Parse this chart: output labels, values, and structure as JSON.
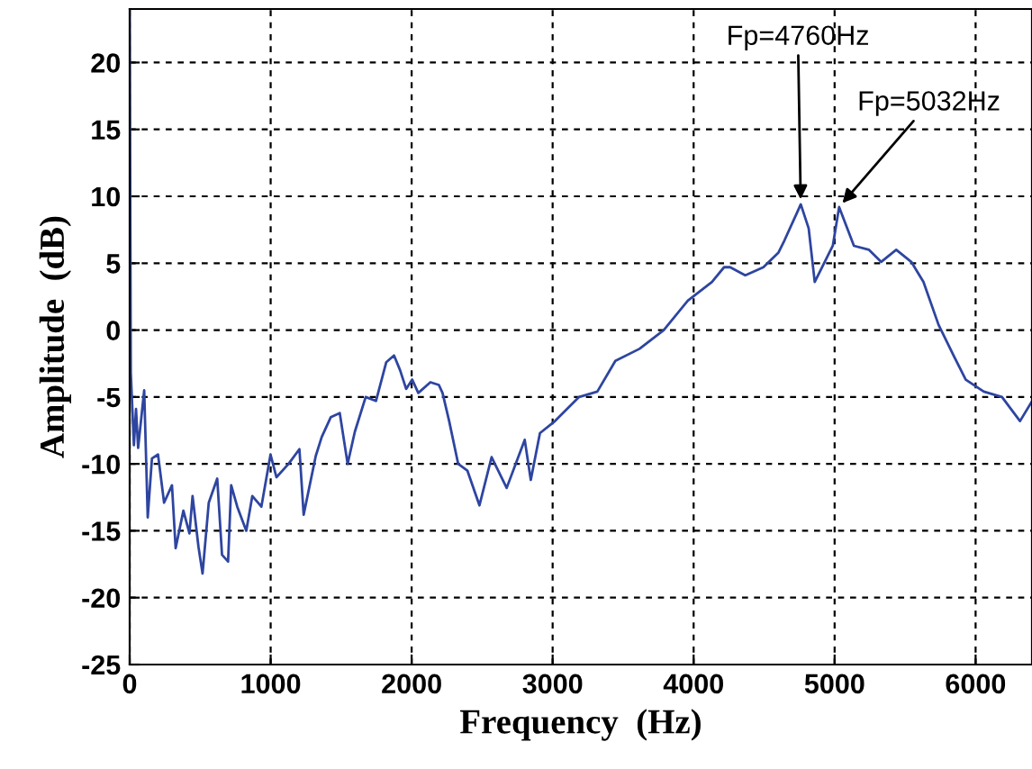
{
  "chart_data": {
    "type": "line",
    "xlabel": "Frequency  (Hz)",
    "ylabel": "Amplitude  (dB)",
    "xlim": [
      0,
      6400
    ],
    "ylim": [
      -25,
      24
    ],
    "xticks": [
      0,
      1000,
      2000,
      3000,
      4000,
      5000,
      6000
    ],
    "yticks": [
      -25,
      -20,
      -15,
      -10,
      -5,
      0,
      5,
      10,
      15,
      20
    ],
    "grid": true,
    "line_style": "solid",
    "marker": "none",
    "annotations": [
      {
        "text": "Fp=4760Hz",
        "x": 4760,
        "y": 9.4
      },
      {
        "text": "Fp=5032Hz",
        "x": 5032,
        "y": 9.2
      }
    ],
    "series": [
      {
        "color": "#2e45a0",
        "x": [
          0,
          8,
          30,
          45,
          60,
          103,
          128,
          158,
          201,
          244,
          300,
          326,
          381,
          424,
          446,
          488,
          517,
          561,
          621,
          655,
          698,
          720,
          763,
          827,
          870,
          934,
          999,
          1041,
          1127,
          1204,
          1234,
          1320,
          1362,
          1427,
          1490,
          1546,
          1597,
          1674,
          1747,
          1820,
          1875,
          1918,
          1961,
          2004,
          2047,
          2133,
          2193,
          2219,
          2266,
          2330,
          2395,
          2481,
          2567,
          2674,
          2802,
          2845,
          2910,
          3017,
          3188,
          3317,
          3445,
          3616,
          3788,
          3959,
          4130,
          4216,
          4259,
          4366,
          4388,
          4495,
          4602,
          4644,
          4730,
          4760,
          4816,
          4859,
          4987,
          5032,
          5137,
          5244,
          5330,
          5437,
          5544,
          5630,
          5737,
          5844,
          5930,
          6058,
          6187,
          6315,
          6395
        ],
        "values": [
          24,
          -3.2,
          -8.6,
          -5.9,
          -8.8,
          -4.5,
          -14,
          -9.6,
          -9.3,
          -12.9,
          -11.6,
          -16.3,
          -13.5,
          -15.2,
          -12.4,
          -16.2,
          -18.2,
          -12.9,
          -11.1,
          -16.8,
          -17.3,
          -11.6,
          -13.2,
          -15,
          -12.4,
          -13.2,
          -9.3,
          -11,
          -10,
          -8.9,
          -13.8,
          -9.4,
          -8,
          -6.5,
          -6.2,
          -10,
          -7.6,
          -5,
          -5.3,
          -2.4,
          -1.9,
          -3,
          -4.4,
          -3.7,
          -4.7,
          -3.9,
          -4.1,
          -4.7,
          -6.8,
          -10,
          -10.5,
          -13.1,
          -9.5,
          -11.8,
          -8.2,
          -11.2,
          -7.7,
          -6.8,
          -5,
          -4.6,
          -2.3,
          -1.4,
          0,
          2.2,
          3.6,
          4.7,
          4.7,
          4.1,
          4.2,
          4.7,
          5.8,
          6.7,
          8.7,
          9.4,
          7.6,
          3.6,
          6.3,
          9.2,
          6.3,
          6,
          5.1,
          6,
          5.1,
          3.6,
          0.4,
          -1.9,
          -3.7,
          -4.6,
          -5,
          -6.8,
          -5.4
        ]
      }
    ]
  }
}
